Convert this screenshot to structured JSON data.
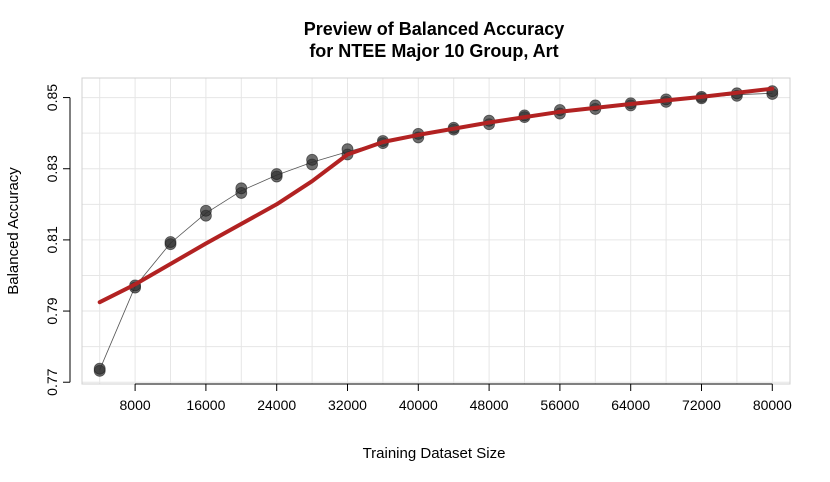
{
  "chart_data": {
    "type": "line",
    "title_line1": "Preview of Balanced Accuracy",
    "title_line2": "for NTEE Major 10 Group, Art",
    "xlabel": "Training Dataset Size",
    "ylabel": "Balanced Accuracy",
    "xlim": [
      2000,
      82000
    ],
    "ylim": [
      0.7695,
      0.8555
    ],
    "xticks": [
      8000,
      16000,
      24000,
      32000,
      40000,
      48000,
      56000,
      64000,
      72000,
      80000
    ],
    "yticks": [
      0.77,
      0.79,
      0.81,
      0.83,
      0.85
    ],
    "grid": true,
    "colors": {
      "points": "#303030",
      "observed_line": "#555555",
      "fit_line": "#b22222",
      "grid": "#e6e6e6",
      "frame": "#d0d0d0"
    },
    "series": [
      {
        "style": "observed",
        "points": [
          [
            4000,
            0.7732
          ],
          [
            4000,
            0.7738
          ],
          [
            8000,
            0.7966
          ],
          [
            8000,
            0.7972
          ],
          [
            12000,
            0.8088
          ],
          [
            12000,
            0.8094
          ],
          [
            16000,
            0.8168
          ],
          [
            16000,
            0.8182
          ],
          [
            20000,
            0.8232
          ],
          [
            20000,
            0.8245
          ],
          [
            24000,
            0.8278
          ],
          [
            24000,
            0.8285
          ],
          [
            28000,
            0.8312
          ],
          [
            28000,
            0.8325
          ],
          [
            32000,
            0.834
          ],
          [
            32000,
            0.8355
          ],
          [
            36000,
            0.8372
          ],
          [
            36000,
            0.8378
          ],
          [
            40000,
            0.8388
          ],
          [
            40000,
            0.8398
          ],
          [
            44000,
            0.841
          ],
          [
            44000,
            0.8415
          ],
          [
            48000,
            0.8425
          ],
          [
            48000,
            0.8435
          ],
          [
            52000,
            0.8445
          ],
          [
            52000,
            0.845
          ],
          [
            56000,
            0.8455
          ],
          [
            56000,
            0.8465
          ],
          [
            60000,
            0.8468
          ],
          [
            60000,
            0.8478
          ],
          [
            64000,
            0.8478
          ],
          [
            64000,
            0.8484
          ],
          [
            68000,
            0.8488
          ],
          [
            68000,
            0.8495
          ],
          [
            72000,
            0.8498
          ],
          [
            72000,
            0.8502
          ],
          [
            76000,
            0.8505
          ],
          [
            76000,
            0.8512
          ],
          [
            80000,
            0.851
          ],
          [
            80000,
            0.8518
          ]
        ],
        "line": [
          [
            4000,
            0.7735
          ],
          [
            8000,
            0.7969
          ],
          [
            12000,
            0.8091
          ],
          [
            16000,
            0.8175
          ],
          [
            20000,
            0.8238
          ],
          [
            24000,
            0.8282
          ],
          [
            28000,
            0.8318
          ],
          [
            32000,
            0.8348
          ],
          [
            36000,
            0.8375
          ],
          [
            40000,
            0.8393
          ],
          [
            44000,
            0.8412
          ],
          [
            48000,
            0.843
          ],
          [
            52000,
            0.8447
          ],
          [
            56000,
            0.846
          ],
          [
            60000,
            0.8473
          ],
          [
            64000,
            0.8481
          ],
          [
            68000,
            0.8491
          ],
          [
            72000,
            0.85
          ],
          [
            76000,
            0.8508
          ],
          [
            80000,
            0.8512
          ]
        ]
      },
      {
        "style": "fit",
        "line": [
          [
            4000,
            0.7925
          ],
          [
            8000,
            0.7975
          ],
          [
            16000,
            0.809
          ],
          [
            24000,
            0.82
          ],
          [
            28000,
            0.8265
          ],
          [
            32000,
            0.834
          ],
          [
            36000,
            0.8375
          ],
          [
            40000,
            0.8395
          ],
          [
            48000,
            0.843
          ],
          [
            56000,
            0.846
          ],
          [
            64000,
            0.8482
          ],
          [
            72000,
            0.8502
          ],
          [
            80000,
            0.8525
          ]
        ]
      }
    ]
  }
}
